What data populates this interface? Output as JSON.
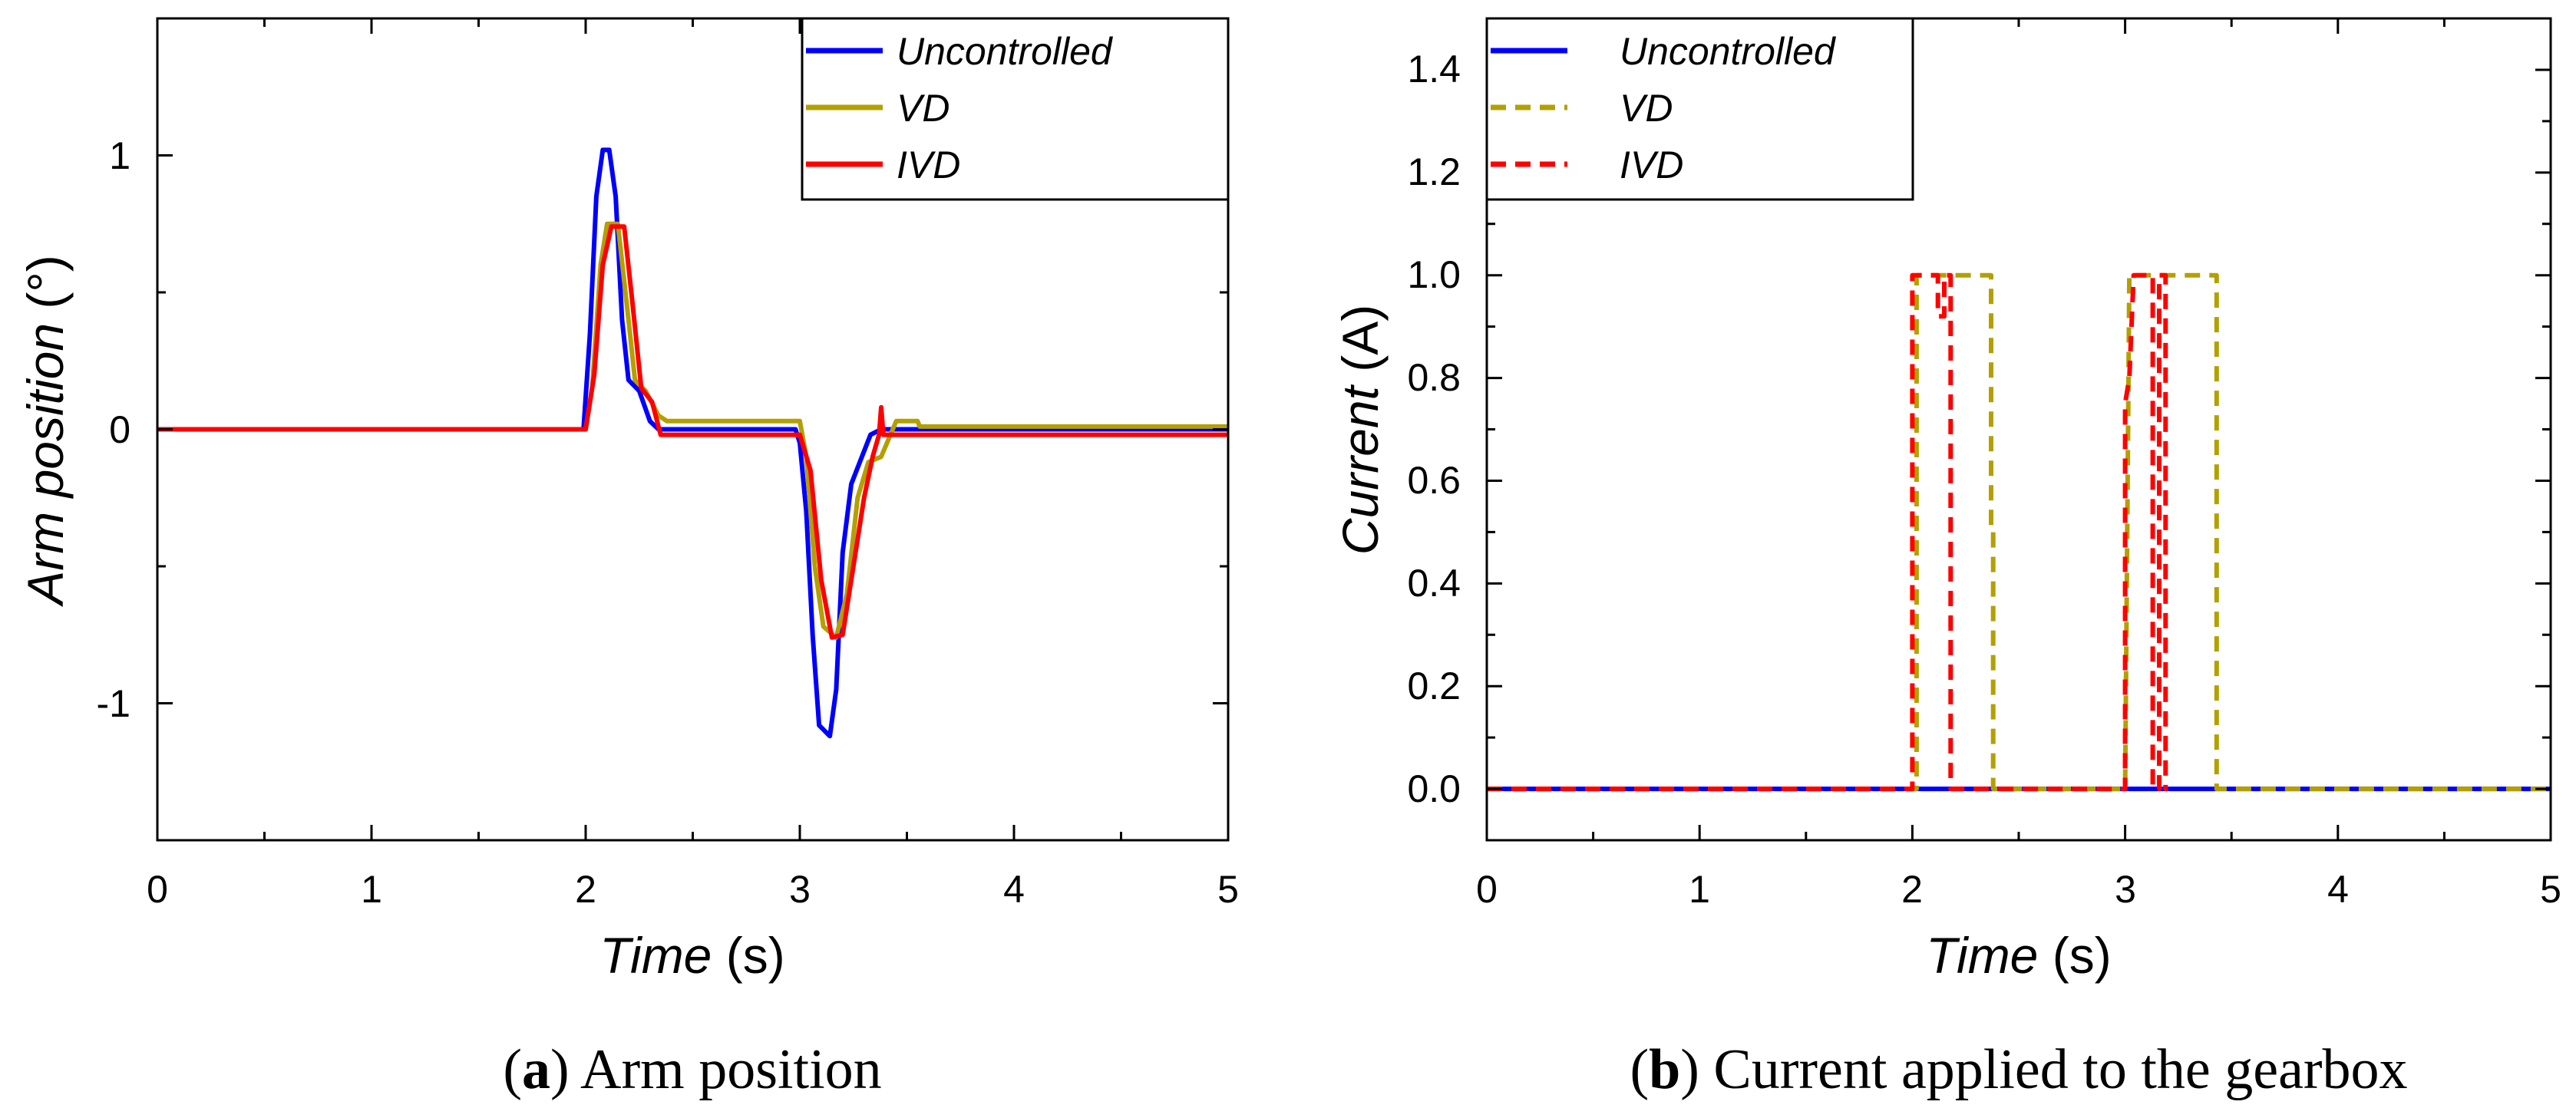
{
  "chart_data": [
    {
      "type": "line",
      "id": "a",
      "caption_letter": "a",
      "caption_text": "Arm position",
      "xlabel_italic": "Time",
      "xlabel_unit": "(s)",
      "ylabel_italic": "Arm position",
      "ylabel_unit": "(°)",
      "xlim": [
        0,
        5
      ],
      "ylim": [
        -1.5,
        1.5
      ],
      "xticks": [
        0,
        1,
        2,
        3,
        4,
        5
      ],
      "xtick_labels": [
        "0",
        "1",
        "2",
        "3",
        "4",
        "5"
      ],
      "yticks": [
        -1,
        0,
        1
      ],
      "ytick_labels": [
        "-1",
        "0",
        "1"
      ],
      "legend_position": "top-right",
      "series": [
        {
          "name": "Uncontrolled",
          "color": "#0000ff",
          "dash": "solid",
          "points": [
            [
              0,
              0
            ],
            [
              1.99,
              0
            ],
            [
              2.02,
              0.35
            ],
            [
              2.05,
              0.85
            ],
            [
              2.08,
              1.02
            ],
            [
              2.11,
              1.02
            ],
            [
              2.14,
              0.85
            ],
            [
              2.17,
              0.4
            ],
            [
              2.2,
              0.18
            ],
            [
              2.25,
              0.14
            ],
            [
              2.3,
              0.03
            ],
            [
              2.34,
              0
            ],
            [
              2.98,
              0
            ],
            [
              3.0,
              -0.05
            ],
            [
              3.03,
              -0.3
            ],
            [
              3.06,
              -0.75
            ],
            [
              3.09,
              -1.08
            ],
            [
              3.14,
              -1.12
            ],
            [
              3.17,
              -0.95
            ],
            [
              3.2,
              -0.45
            ],
            [
              3.24,
              -0.2
            ],
            [
              3.29,
              -0.1
            ],
            [
              3.33,
              -0.02
            ],
            [
              3.38,
              0
            ],
            [
              5,
              0
            ]
          ]
        },
        {
          "name": "VD",
          "color": "#b3a000",
          "dash": "solid",
          "points": [
            [
              0,
              0
            ],
            [
              2.0,
              0
            ],
            [
              2.03,
              0.15
            ],
            [
              2.07,
              0.6
            ],
            [
              2.1,
              0.75
            ],
            [
              2.15,
              0.75
            ],
            [
              2.2,
              0.4
            ],
            [
              2.23,
              0.18
            ],
            [
              2.28,
              0.14
            ],
            [
              2.34,
              0.05
            ],
            [
              2.38,
              0.03
            ],
            [
              3.0,
              0.03
            ],
            [
              3.03,
              -0.1
            ],
            [
              3.07,
              -0.5
            ],
            [
              3.11,
              -0.72
            ],
            [
              3.17,
              -0.76
            ],
            [
              3.22,
              -0.6
            ],
            [
              3.27,
              -0.25
            ],
            [
              3.32,
              -0.12
            ],
            [
              3.38,
              -0.1
            ],
            [
              3.45,
              0.03
            ],
            [
              3.55,
              0.03
            ],
            [
              3.56,
              0.01
            ],
            [
              5,
              0.01
            ]
          ]
        },
        {
          "name": "IVD",
          "color": "#ff0000",
          "dash": "solid",
          "points": [
            [
              0,
              0
            ],
            [
              2.0,
              0
            ],
            [
              2.04,
              0.2
            ],
            [
              2.08,
              0.6
            ],
            [
              2.12,
              0.74
            ],
            [
              2.18,
              0.74
            ],
            [
              2.22,
              0.45
            ],
            [
              2.26,
              0.15
            ],
            [
              2.31,
              0.1
            ],
            [
              2.35,
              -0.02
            ],
            [
              2.4,
              -0.02
            ],
            [
              3.0,
              -0.02
            ],
            [
              3.05,
              -0.15
            ],
            [
              3.1,
              -0.55
            ],
            [
              3.15,
              -0.76
            ],
            [
              3.2,
              -0.75
            ],
            [
              3.25,
              -0.5
            ],
            [
              3.3,
              -0.25
            ],
            [
              3.34,
              -0.1
            ],
            [
              3.37,
              -0.02
            ],
            [
              3.38,
              0.08
            ],
            [
              3.39,
              -0.02
            ],
            [
              5,
              -0.02
            ]
          ]
        }
      ]
    },
    {
      "type": "line",
      "id": "b",
      "caption_letter": "b",
      "caption_text": "Current applied to the gearbox",
      "xlabel_italic": "Time",
      "xlabel_unit": "(s)",
      "ylabel_italic": "Current",
      "ylabel_unit": "(A)",
      "xlim": [
        0,
        5
      ],
      "ylim": [
        -0.1,
        1.5
      ],
      "xticks": [
        0,
        1,
        2,
        3,
        4,
        5
      ],
      "xtick_labels": [
        "0",
        "1",
        "2",
        "3",
        "4",
        "5"
      ],
      "yticks": [
        0.0,
        0.2,
        0.4,
        0.6,
        0.8,
        1.0,
        1.2,
        1.4
      ],
      "ytick_labels": [
        "0.0",
        "0.2",
        "0.4",
        "0.6",
        "0.8",
        "1.0",
        "1.2",
        "1.4"
      ],
      "legend_position": "top-left",
      "series": [
        {
          "name": "Uncontrolled",
          "color": "#0000ff",
          "dash": "solid",
          "points": [
            [
              0,
              0
            ],
            [
              5,
              0
            ]
          ]
        },
        {
          "name": "VD",
          "color": "#b3a000",
          "dash": "dashed",
          "points": [
            [
              0,
              0
            ],
            [
              2.02,
              0
            ],
            [
              2.02,
              1.0
            ],
            [
              2.37,
              1.0
            ],
            [
              2.37,
              0.5
            ],
            [
              2.38,
              0.5
            ],
            [
              2.38,
              0
            ],
            [
              3.0,
              0
            ],
            [
              3.02,
              1.0
            ],
            [
              3.43,
              1.0
            ],
            [
              3.43,
              0
            ],
            [
              5,
              0
            ]
          ]
        },
        {
          "name": "IVD",
          "color": "#ff0000",
          "dash": "dashed",
          "points": [
            [
              0,
              0
            ],
            [
              2.0,
              0
            ],
            [
              2.0,
              1.0
            ],
            [
              2.12,
              1.0
            ],
            [
              2.12,
              0.92
            ],
            [
              2.15,
              0.92
            ],
            [
              2.15,
              1.0
            ],
            [
              2.18,
              1.0
            ],
            [
              2.18,
              0
            ],
            [
              3.0,
              0
            ],
            [
              3.0,
              0.75
            ],
            [
              3.02,
              0.8
            ],
            [
              3.04,
              1.0
            ],
            [
              3.13,
              1.0
            ],
            [
              3.13,
              0
            ],
            [
              3.16,
              0
            ],
            [
              3.16,
              1.0
            ],
            [
              3.19,
              1.0
            ],
            [
              3.19,
              0
            ],
            [
              3.2,
              0
            ]
          ]
        }
      ]
    }
  ]
}
